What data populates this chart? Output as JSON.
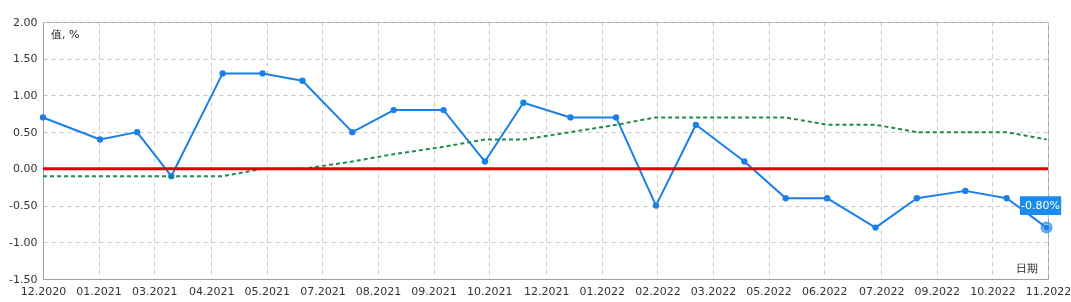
{
  "chart_data": {
    "type": "line",
    "xlabel": "日期",
    "ylabel": "值, %",
    "grid": true,
    "x": [
      "2020-12-20",
      "2021-01-29",
      "2021-02-24",
      "2021-03-20",
      "2021-04-25",
      "2021-05-23",
      "2021-06-20",
      "2021-07-25",
      "2021-08-23",
      "2021-09-27",
      "2021-10-26",
      "2021-11-22",
      "2021-12-25",
      "2022-01-26",
      "2022-02-23",
      "2022-03-23",
      "2022-04-26",
      "2022-05-25",
      "2022-06-23",
      "2022-07-27",
      "2022-08-25",
      "2022-09-28",
      "2022-10-27",
      "2022-11-24"
    ],
    "series": [
      {
        "color": "#1a7fe8",
        "marker": "circle",
        "line_style": "solid",
        "values": [
          0.7,
          0.4,
          0.5,
          -0.1,
          1.3,
          1.3,
          1.2,
          0.5,
          0.8,
          0.8,
          0.1,
          0.9,
          0.7,
          0.7,
          -0.5,
          0.6,
          0.1,
          -0.4,
          -0.4,
          -0.8,
          -0.4,
          -0.3,
          -0.4,
          -0.8
        ]
      },
      {
        "color": "#1f8a4c",
        "marker": "none",
        "line_style": "dashed",
        "values": [
          -0.1,
          -0.1,
          -0.1,
          -0.1,
          -0.1,
          0.0,
          0.0,
          0.1,
          0.2,
          0.3,
          0.4,
          0.4,
          0.5,
          0.6,
          0.7,
          0.7,
          0.7,
          0.7,
          0.6,
          0.6,
          0.5,
          0.5,
          0.5,
          0.4
        ]
      }
    ],
    "ref_lines": [
      {
        "axis": "y",
        "value": 0,
        "color": "#e00000"
      }
    ],
    "annotations": [
      {
        "text": "-0.80%",
        "x": "2022-11-24",
        "y": -0.8
      }
    ],
    "xlim": [
      "2020-12-20",
      "2022-11-25"
    ],
    "xticks": [
      {
        "value": "2020-12-20",
        "label": "12.2020"
      },
      {
        "value": "2021-01-28",
        "label": "01.2021"
      },
      {
        "value": "2021-03-08",
        "label": "03.2021"
      },
      {
        "value": "2021-04-17",
        "label": "04.2021"
      },
      {
        "value": "2021-05-26",
        "label": "05.2021"
      },
      {
        "value": "2021-07-04",
        "label": "07.2021"
      },
      {
        "value": "2021-08-12",
        "label": "08.2021"
      },
      {
        "value": "2021-09-20",
        "label": "09.2021"
      },
      {
        "value": "2021-10-29",
        "label": "10.2021"
      },
      {
        "value": "2021-12-08",
        "label": "12.2021"
      },
      {
        "value": "2022-01-16",
        "label": "01.2022"
      },
      {
        "value": "2022-02-24",
        "label": "02.2022"
      },
      {
        "value": "2022-04-04",
        "label": "03.2022"
      },
      {
        "value": "2022-05-13",
        "label": "05.2022"
      },
      {
        "value": "2022-06-21",
        "label": "06.2022"
      },
      {
        "value": "2022-07-31",
        "label": "07.2022"
      },
      {
        "value": "2022-09-08",
        "label": "09.2022"
      },
      {
        "value": "2022-10-17",
        "label": "10.2022"
      },
      {
        "value": "2022-11-25",
        "label": "11.2022"
      }
    ],
    "ylim": [
      -1.5,
      2
    ],
    "yticks": [
      {
        "value": -1.5,
        "label": "-1.50"
      },
      {
        "value": -1,
        "label": "-1.00"
      },
      {
        "value": -0.5,
        "label": "-0.50"
      },
      {
        "value": 0,
        "label": "0.00"
      },
      {
        "value": 0.5,
        "label": "0.50"
      },
      {
        "value": 1,
        "label": "1.00"
      },
      {
        "value": 1.5,
        "label": "1.50"
      },
      {
        "value": 2,
        "label": "2.00"
      }
    ]
  }
}
